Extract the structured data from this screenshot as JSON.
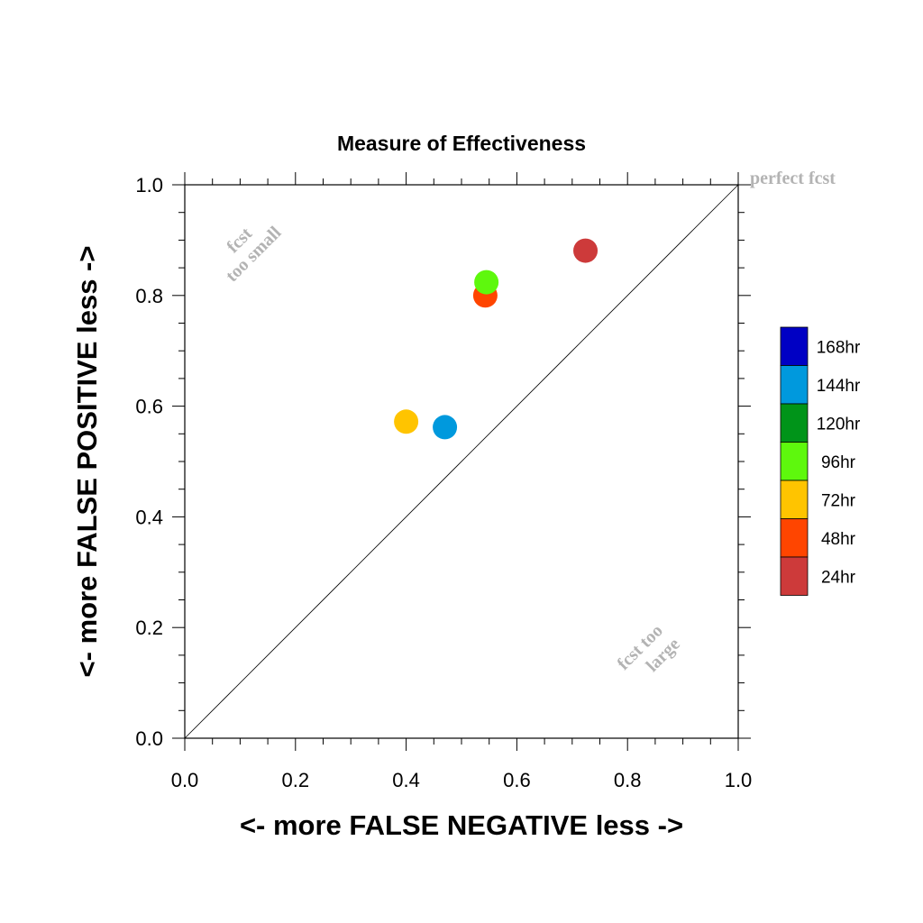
{
  "chart_data": {
    "type": "scatter",
    "title": "Measure of Effectiveness",
    "xlabel": "<- more   FALSE NEGATIVE   less ->",
    "ylabel": "<- more   FALSE POSITIVE   less ->",
    "xlim": [
      0.0,
      1.0
    ],
    "ylim": [
      0.0,
      1.0
    ],
    "xticks": [
      "0.0",
      "0.2",
      "0.4",
      "0.6",
      "0.8",
      "1.0"
    ],
    "yticks": [
      "0.0",
      "0.2",
      "0.4",
      "0.6",
      "0.8",
      "1.0"
    ],
    "grid": false,
    "diagonal": "y = x",
    "legend_position": "right",
    "annotations": {
      "perfect": "perfect fcst",
      "too_small_line1": "fcst",
      "too_small_line2": "too small",
      "too_large_line1": "fcst too",
      "too_large_line2": "large"
    },
    "legend": [
      {
        "name": "168hr",
        "color": "#0000c4"
      },
      {
        "name": "144hr",
        "color": "#0099dd"
      },
      {
        "name": "120hr",
        "color": "#009419"
      },
      {
        "name": "96hr",
        "color": "#5ef80d"
      },
      {
        "name": "72hr",
        "color": "#ffc400"
      },
      {
        "name": "48hr",
        "color": "#ff4500"
      },
      {
        "name": "24hr",
        "color": "#cd3a3a"
      }
    ],
    "series": [
      {
        "name": "24hr",
        "x": 0.724,
        "y": 0.881,
        "color": "#cd3a3a"
      },
      {
        "name": "48hr",
        "x": 0.543,
        "y": 0.8,
        "color": "#ff4500"
      },
      {
        "name": "72hr",
        "x": 0.4,
        "y": 0.572,
        "color": "#ffc400"
      },
      {
        "name": "96hr",
        "x": 0.545,
        "y": 0.824,
        "color": "#5ef80d"
      },
      {
        "name": "144hr",
        "x": 0.47,
        "y": 0.562,
        "color": "#0099dd"
      }
    ]
  }
}
